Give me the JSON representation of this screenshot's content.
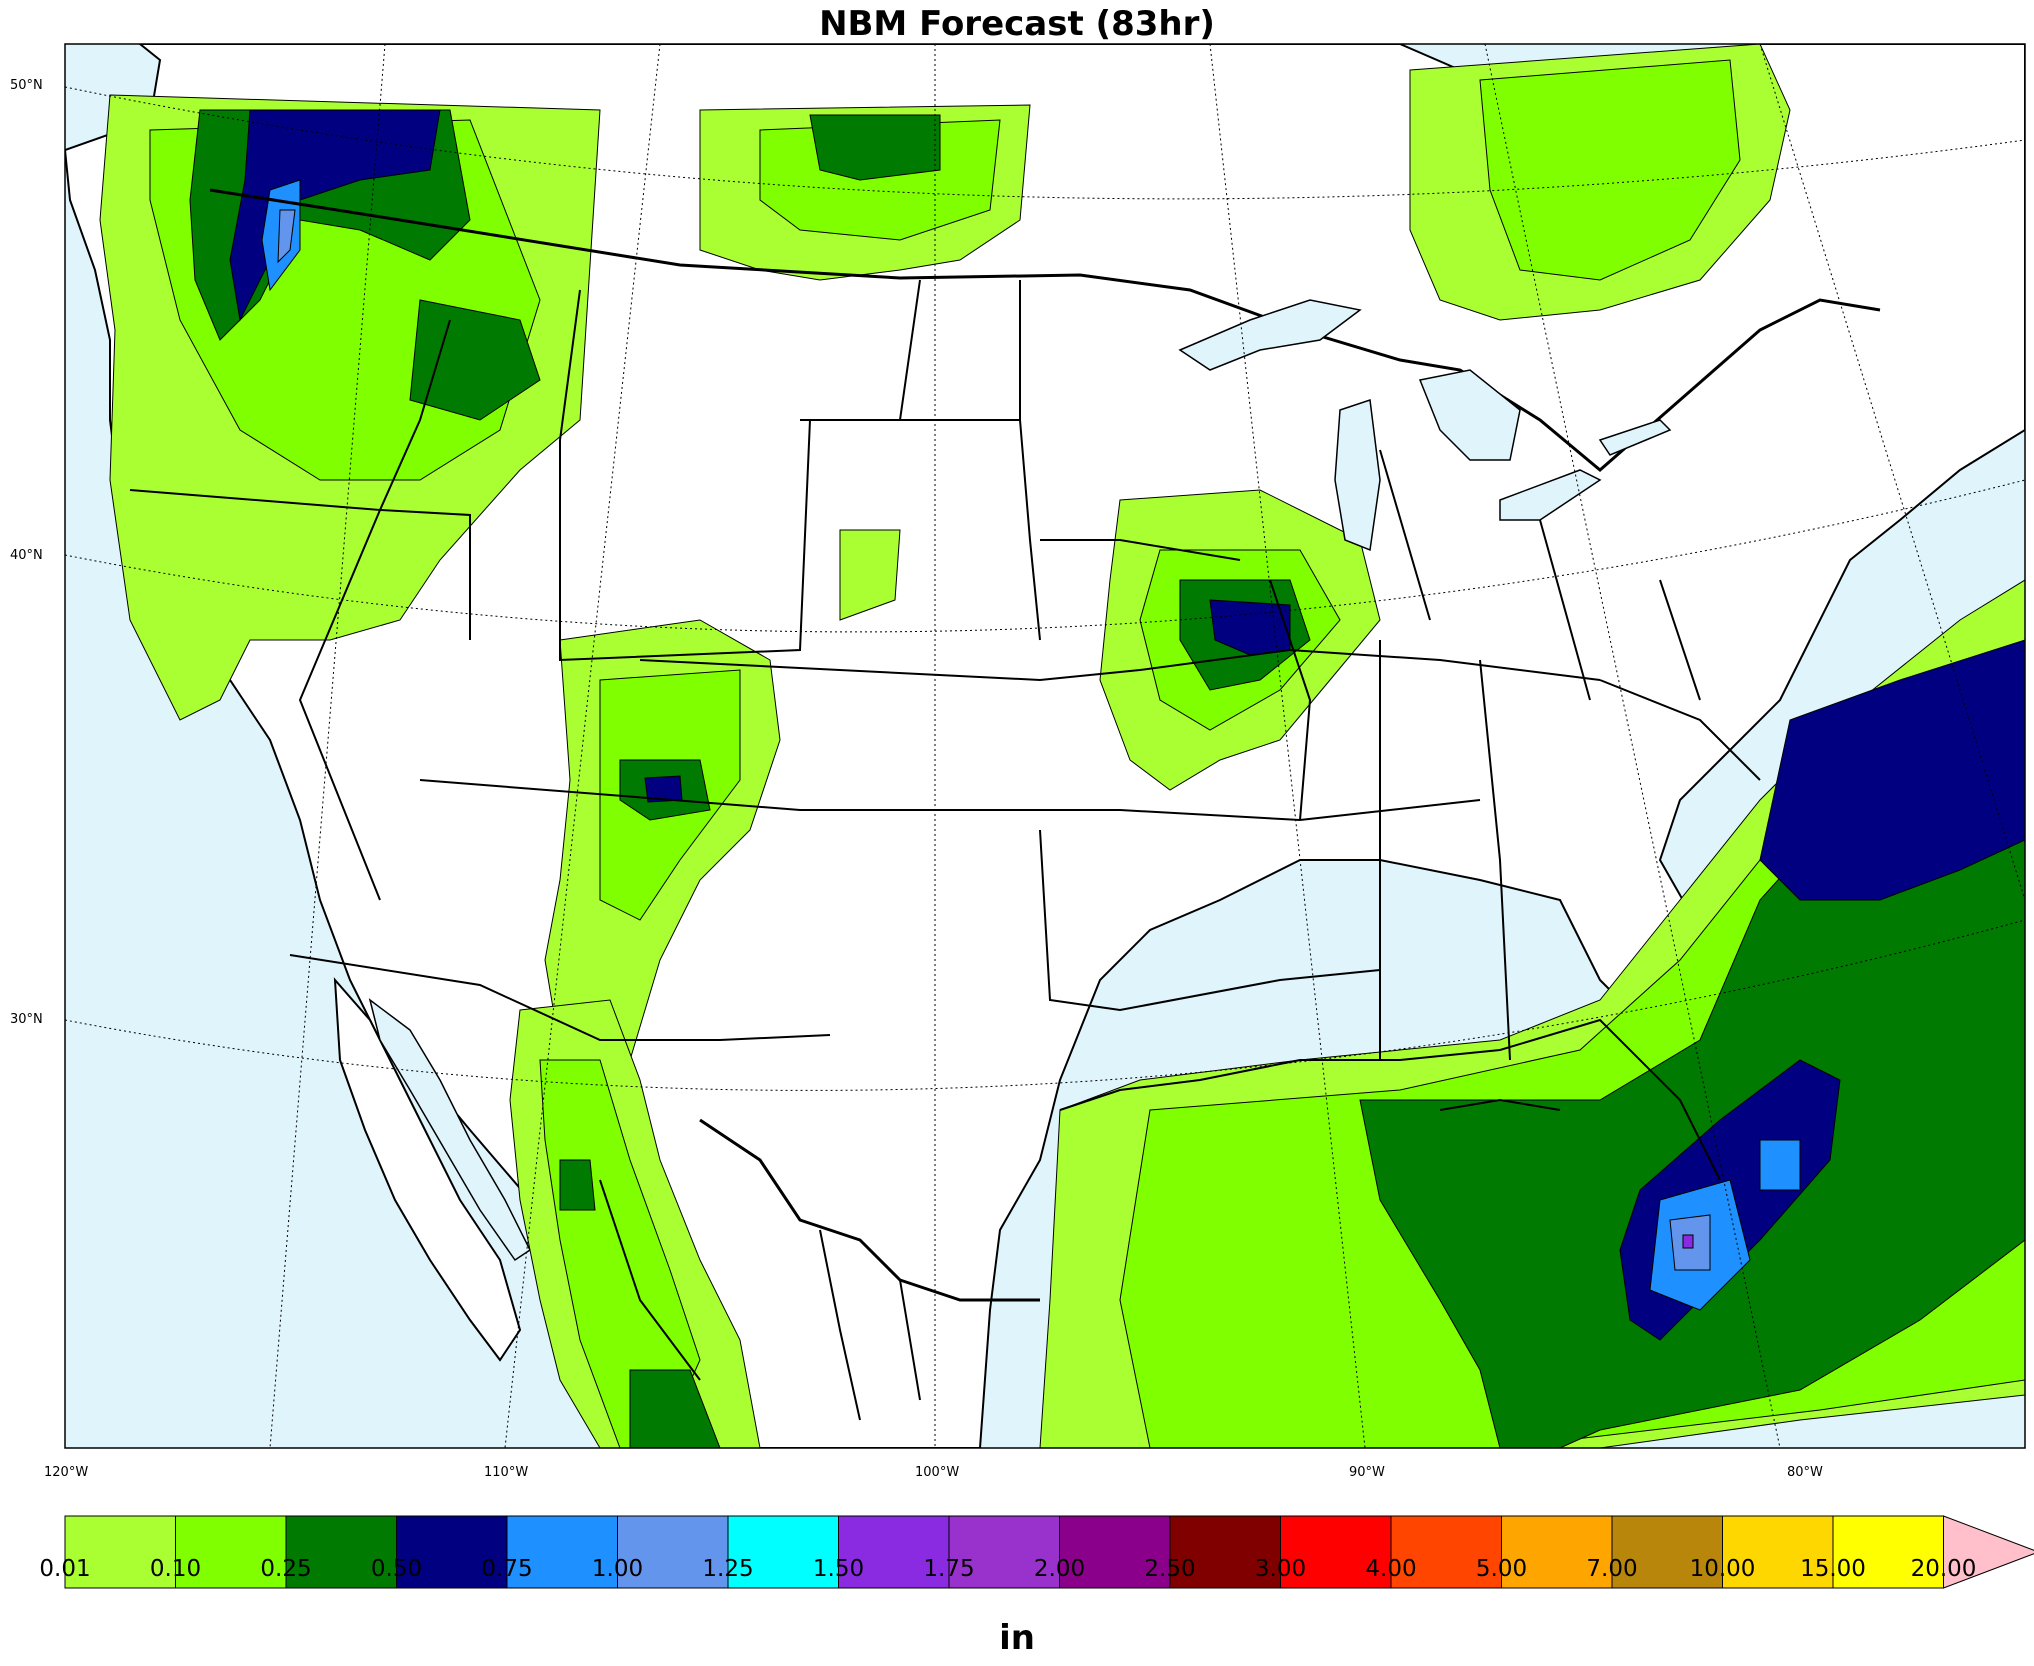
{
  "title": "NBM Forecast (83hr)",
  "lat_labels": [
    "50°N",
    "40°N",
    "30°N"
  ],
  "lon_labels": [
    "120°W",
    "110°W",
    "100°W",
    "90°W",
    "80°W"
  ],
  "colors": {
    "ocean": "#dff4fb",
    "land": "#ffffff",
    "c001": "#aaff33",
    "c010": "#7fff00",
    "c025": "#007a00",
    "c050": "#000080",
    "c075": "#1e90ff",
    "c100": "#6495ed",
    "c125": "#00ffff",
    "c150": "#8a2be2"
  },
  "colorbar": {
    "unit": "in",
    "ticks": [
      "0.01",
      "0.10",
      "0.25",
      "0.50",
      "0.75",
      "1.00",
      "1.25",
      "1.50",
      "1.75",
      "2.00",
      "2.50",
      "3.00",
      "4.00",
      "5.00",
      "7.00",
      "10.00",
      "15.00",
      "20.00"
    ],
    "colors": [
      "#aaff33",
      "#7fff00",
      "#007a00",
      "#000080",
      "#1e90ff",
      "#6495ed",
      "#00ffff",
      "#8a2be2",
      "#9932cc",
      "#8b008b",
      "#800000",
      "#ff0000",
      "#ff4500",
      "#ffa500",
      "#b8860b",
      "#ffd700",
      "#ffff00"
    ],
    "extend_color": "#ffc0cb"
  }
}
